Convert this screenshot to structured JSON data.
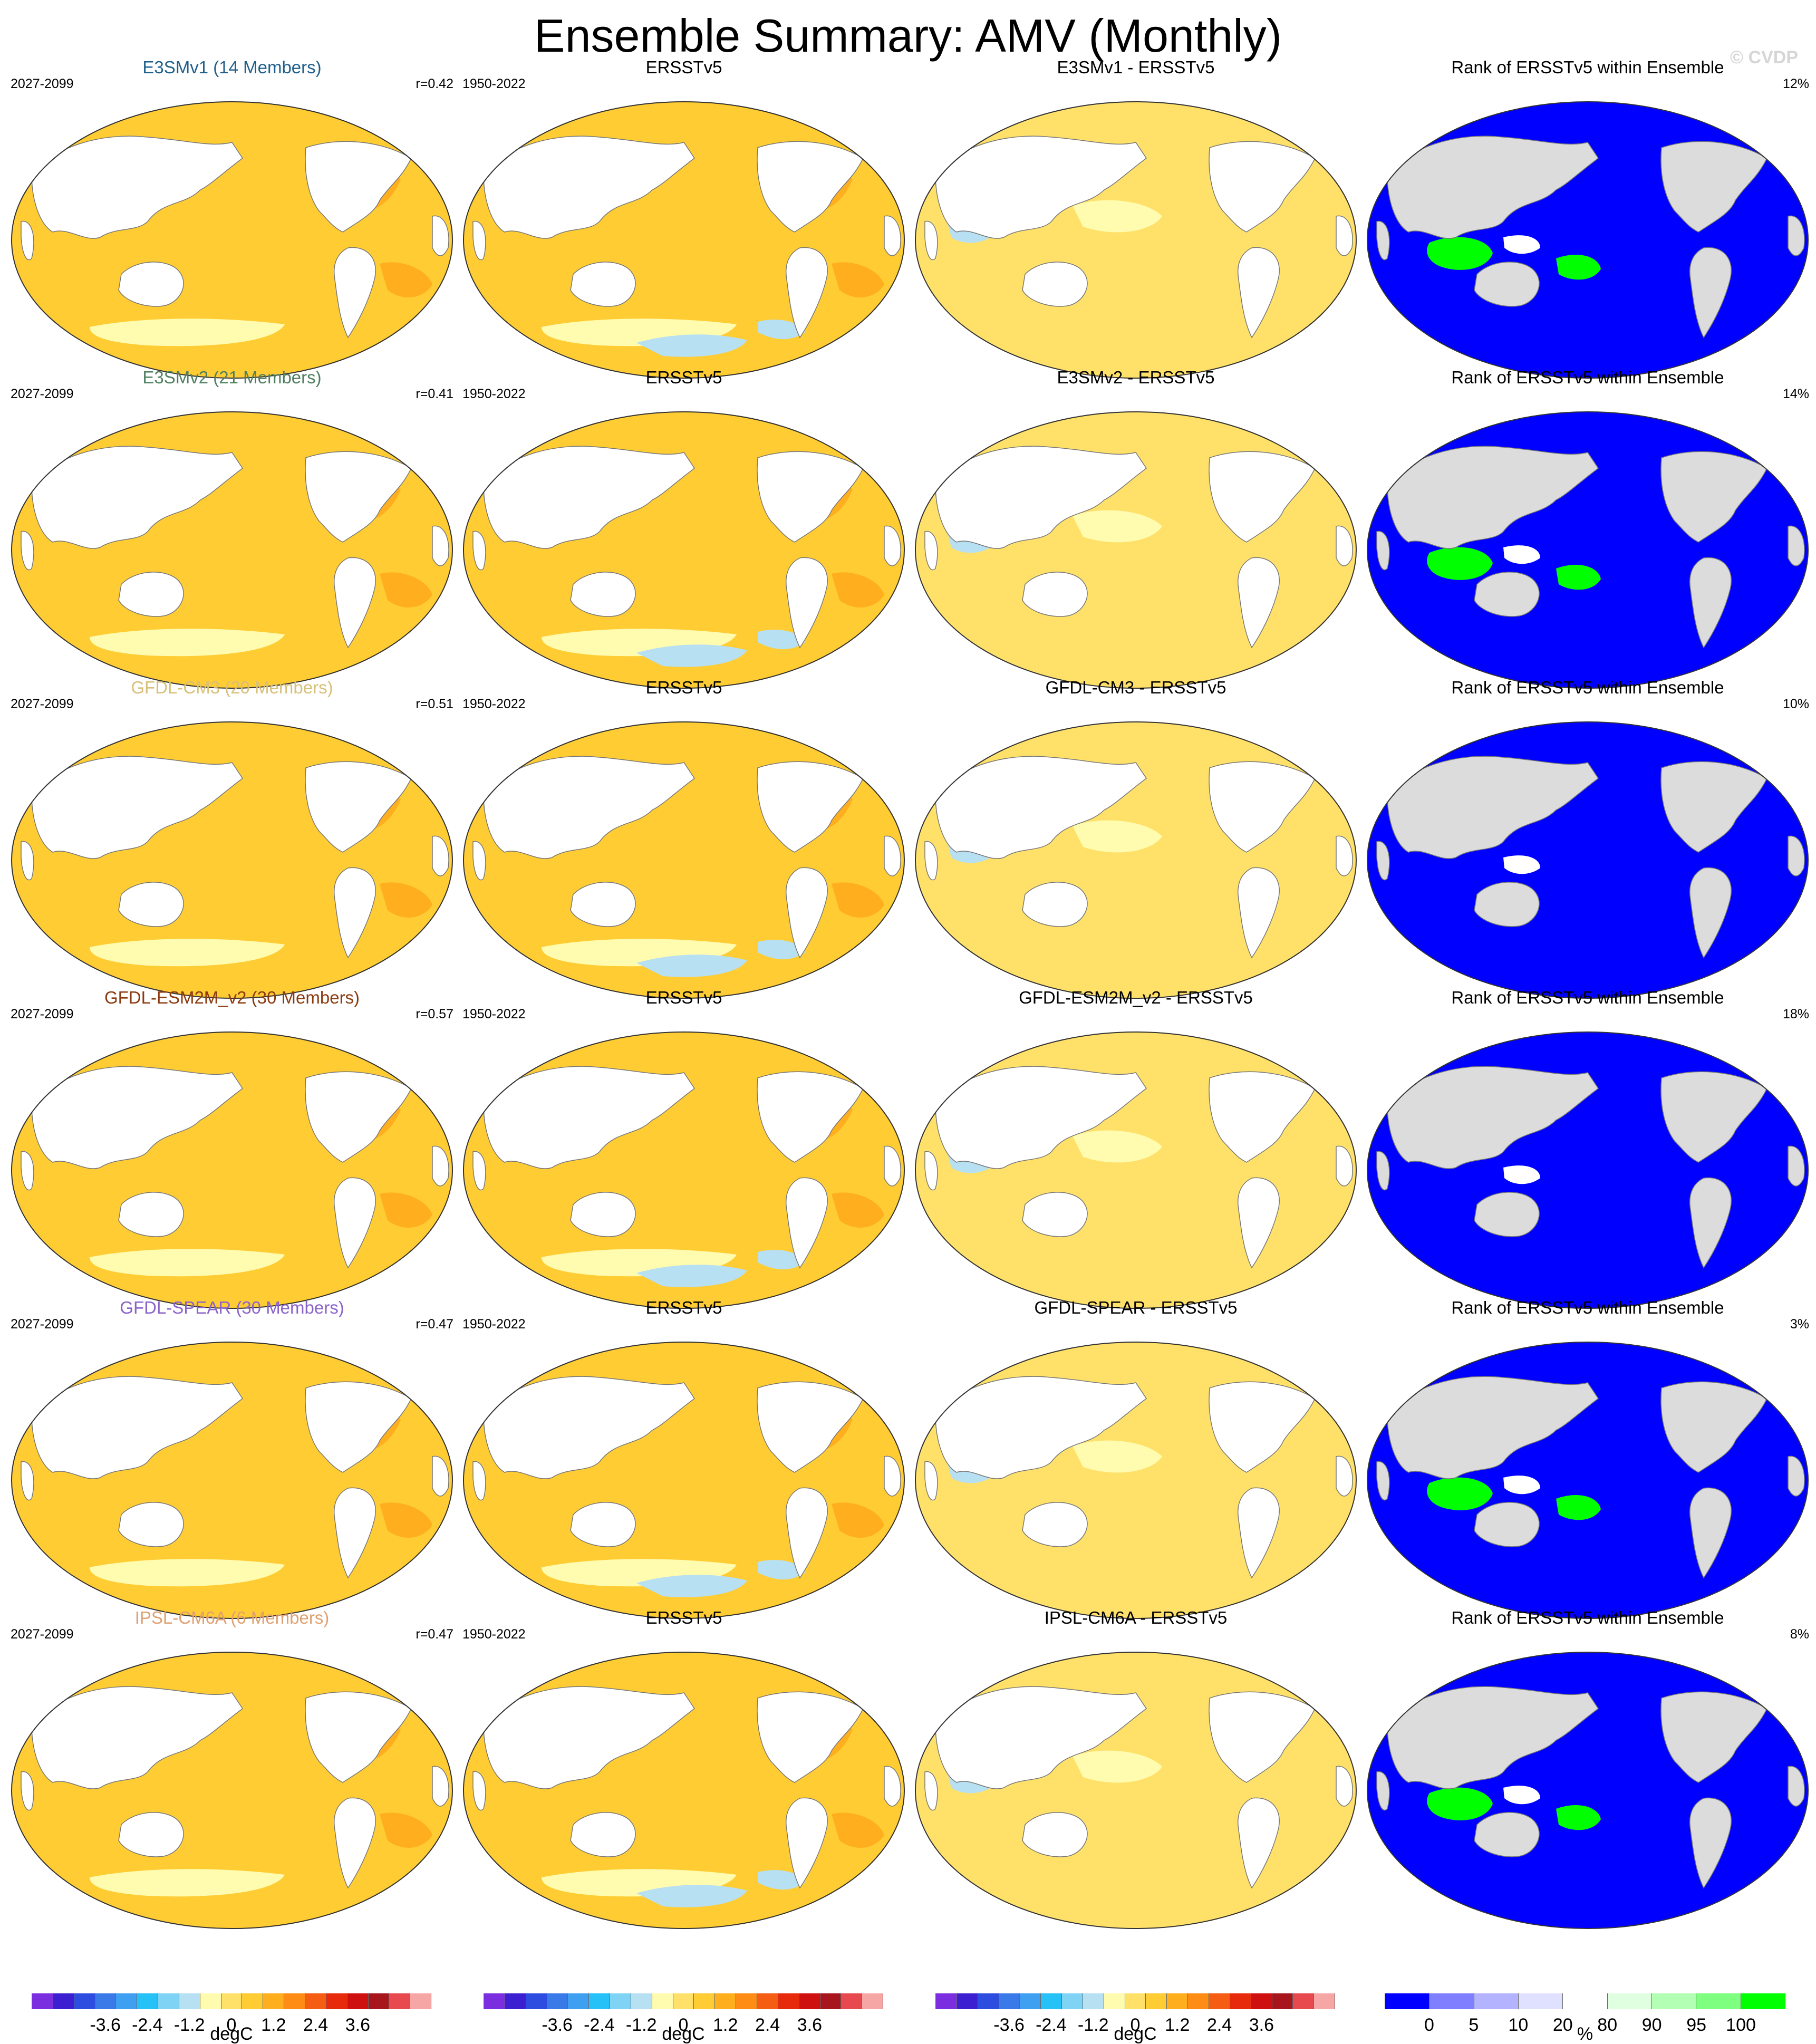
{
  "title": "Ensemble Summary: AMV (Monthly)",
  "credit": "© CVDP",
  "rows": [
    {
      "model": "E3SMv1 (14 Members)",
      "model_color": "#1f5f8b",
      "model_years": "2027-2099",
      "r": "r=0.42",
      "obs": "ERSSTv5",
      "obs_years": "1950-2022",
      "diff": "E3SMv1 - ERSSTv5",
      "rank_title": "Rank of ERSSTv5 within Ensemble",
      "rank_pct": "12%"
    },
    {
      "model": "E3SMv2 (21 Members)",
      "model_color": "#4f7f5f",
      "model_years": "2027-2099",
      "r": "r=0.41",
      "obs": "ERSSTv5",
      "obs_years": "1950-2022",
      "diff": "E3SMv2 - ERSSTv5",
      "rank_title": "Rank of ERSSTv5 within Ensemble",
      "rank_pct": "14%"
    },
    {
      "model": "GFDL-CM3 (20 Members)",
      "model_color": "#d8c078",
      "model_years": "2027-2099",
      "r": "r=0.51",
      "obs": "ERSSTv5",
      "obs_years": "1950-2022",
      "diff": "GFDL-CM3 - ERSSTv5",
      "rank_title": "Rank of ERSSTv5 within Ensemble",
      "rank_pct": "10%"
    },
    {
      "model": "GFDL-ESM2M_v2 (30 Members)",
      "model_color": "#8b3a0f",
      "model_years": "2027-2099",
      "r": "r=0.57",
      "obs": "ERSSTv5",
      "obs_years": "1950-2022",
      "diff": "GFDL-ESM2M_v2 - ERSSTv5",
      "rank_title": "Rank of ERSSTv5 within Ensemble",
      "rank_pct": "18%"
    },
    {
      "model": "GFDL-SPEAR (30 Members)",
      "model_color": "#8a63c9",
      "model_years": "2027-2099",
      "r": "r=0.47",
      "obs": "ERSSTv5",
      "obs_years": "1950-2022",
      "diff": "GFDL-SPEAR - ERSSTv5",
      "rank_title": "Rank of ERSSTv5 within Ensemble",
      "rank_pct": "3%"
    },
    {
      "model": "IPSL-CM6A (6 Members)",
      "model_color": "#e0a070",
      "model_years": "2027-2099",
      "r": "r=0.47",
      "obs": "ERSSTv5",
      "obs_years": "1950-2022",
      "diff": "IPSL-CM6A - ERSSTv5",
      "rank_title": "Rank of ERSSTv5 within Ensemble",
      "rank_pct": "8%"
    }
  ],
  "colorbars": {
    "anomaly": {
      "colors": [
        "#7b2ee0",
        "#3b1fd1",
        "#2d4ce0",
        "#3a7ae8",
        "#3fa0f2",
        "#26c1f6",
        "#7fd3f5",
        "#b7e0f2",
        "#fffcb0",
        "#ffe16a",
        "#ffcc33",
        "#ffae1e",
        "#ff8c14",
        "#f45d12",
        "#e82a0c",
        "#cf1010",
        "#a8151d",
        "#e8494f",
        "#f7a6a6"
      ],
      "ticks": [
        "-3.6",
        "-2.4",
        "-1.2",
        "0",
        "1.2",
        "2.4",
        "3.6"
      ],
      "unit": "degC"
    },
    "rank": {
      "colors": [
        "#0000ff",
        "#7f7fff",
        "#b3b3ff",
        "#e0e0ff",
        "#ffffff",
        "#e0ffe0",
        "#b3ffb3",
        "#7fff7f",
        "#00ff00"
      ],
      "ticks": [
        "0",
        "5",
        "10",
        "20",
        "80",
        "90",
        "95",
        "100"
      ],
      "unit": "%"
    }
  }
}
